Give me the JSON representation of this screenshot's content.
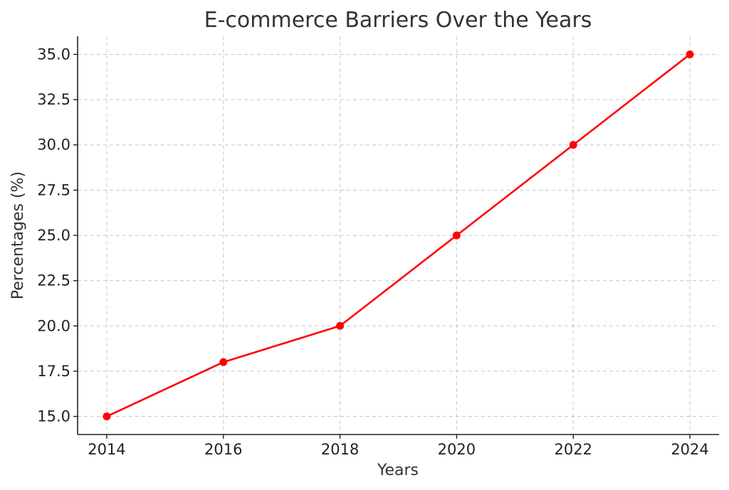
{
  "chart_data": {
    "type": "line",
    "title": "E-commerce Barriers Over the Years",
    "xlabel": "Years",
    "ylabel": "Percentages (%)",
    "x": [
      2014,
      2016,
      2018,
      2020,
      2022,
      2024
    ],
    "series": [
      {
        "values": [
          15.0,
          18.0,
          20.0,
          25.0,
          30.0,
          35.0
        ],
        "color": "#ff0000",
        "marker": "circle"
      }
    ],
    "x_ticks": [
      "2014",
      "2016",
      "2018",
      "2020",
      "2022",
      "2024"
    ],
    "y_ticks": [
      "15.0",
      "17.5",
      "20.0",
      "22.5",
      "25.0",
      "27.5",
      "30.0",
      "32.5",
      "35.0"
    ],
    "xlim": [
      2013.5,
      2024.5
    ],
    "ylim": [
      14.0,
      36.0
    ],
    "grid": true,
    "line_color": "#ff0000"
  }
}
